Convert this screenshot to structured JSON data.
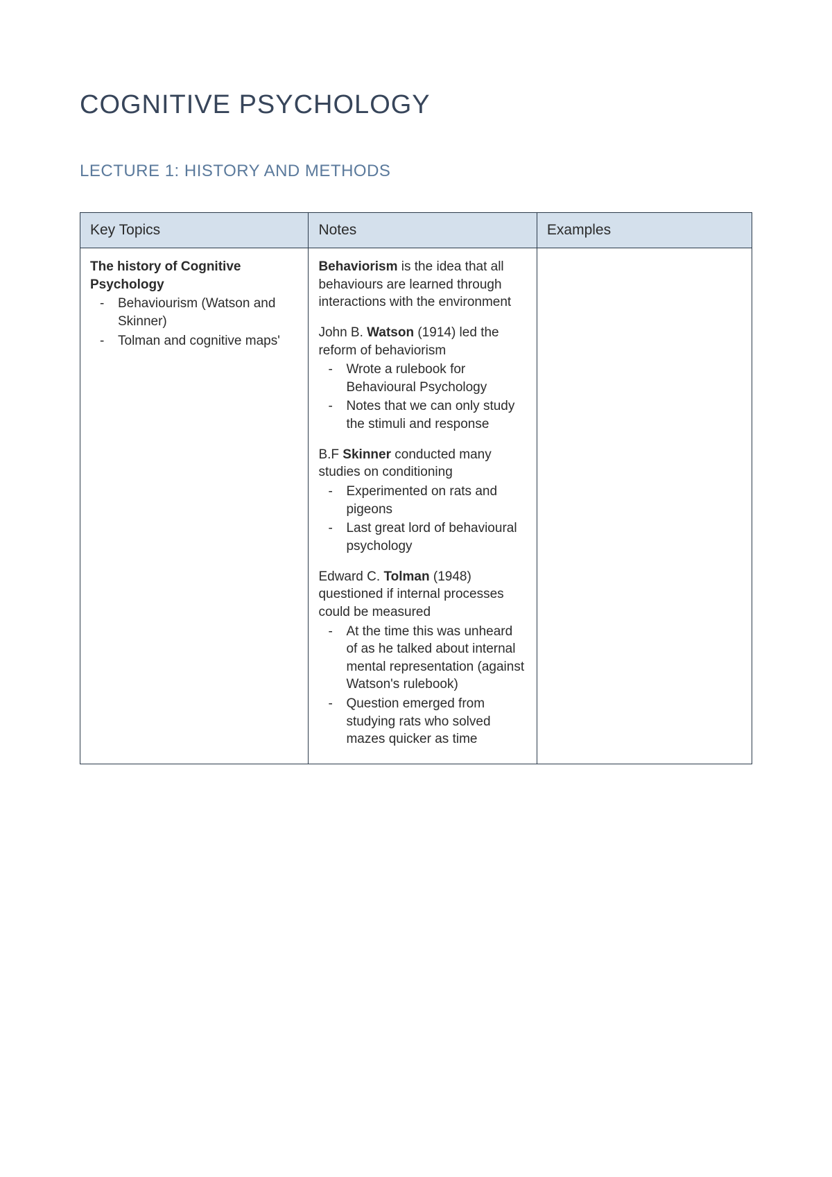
{
  "colors": {
    "page_bg": "#ffffff",
    "title_color": "#37455a",
    "subtitle_color": "#5b7a9c",
    "header_bg": "#d4e0ec",
    "border_color": "#2b3a4a",
    "text_color": "#2b2b2b"
  },
  "typography": {
    "title_fontsize": 38,
    "subtitle_fontsize": 24,
    "header_fontsize": 21,
    "body_fontsize": 19,
    "font_family": "Century Gothic"
  },
  "document": {
    "title": "COGNITIVE PSYCHOLOGY",
    "subtitle": "LECTURE 1: HISTORY AND METHODS"
  },
  "table": {
    "headers": {
      "col1": "Key Topics",
      "col2": "Notes",
      "col3": "Examples"
    },
    "column_widths": [
      "34%",
      "34%",
      "32%"
    ],
    "row1": {
      "key_topics": {
        "heading": "The history of Cognitive Psychology",
        "bullets": [
          "Behaviourism (Watson and Skinner)",
          "Tolman and cognitive maps'"
        ]
      },
      "notes": {
        "p1": {
          "bold_lead": "Behaviorism",
          "rest": " is the idea that all behaviours are learned through interactions with the environment"
        },
        "p2": {
          "pre": "John B. ",
          "bold": "Watson",
          "post": " (1914) led the reform of behaviorism",
          "bullets": [
            "Wrote a rulebook for Behavioural Psychology",
            "Notes that we can only study the stimuli and response"
          ]
        },
        "p3": {
          "pre": "B.F ",
          "bold": "Skinner",
          "post": " conducted many studies on conditioning",
          "bullets": [
            "Experimented on rats and pigeons",
            "Last great lord of behavioural psychology"
          ]
        },
        "p4": {
          "pre": "Edward C. ",
          "bold": "Tolman",
          "post": " (1948) questioned if internal processes could be measured",
          "bullets": [
            "At the time this was unheard of as he talked about internal mental representation (against Watson's rulebook)",
            "Question emerged from studying rats who solved mazes quicker as time"
          ]
        }
      },
      "examples": ""
    }
  }
}
